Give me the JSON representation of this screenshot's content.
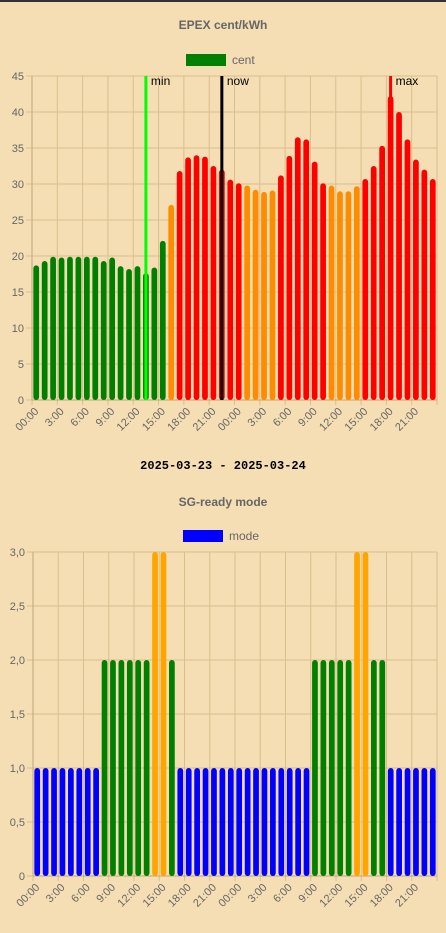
{
  "date_range": "2025-03-23 - 2025-03-24",
  "chart_data": [
    {
      "type": "bar",
      "title": "EPEX cent/kWh",
      "legend": {
        "label": "cent",
        "color": "#008000",
        "position": "top"
      },
      "x_tick_labels": [
        "00:00",
        "3:00",
        "6:00",
        "9:00",
        "12:00",
        "15:00",
        "18:00",
        "21:00",
        "00:00",
        "3:00",
        "6:00",
        "9:00",
        "12:00",
        "15:00",
        "18:00",
        "21:00"
      ],
      "categories": [
        "00:00",
        "01:00",
        "02:00",
        "03:00",
        "04:00",
        "05:00",
        "06:00",
        "07:00",
        "08:00",
        "09:00",
        "10:00",
        "11:00",
        "12:00",
        "13:00",
        "14:00",
        "15:00",
        "16:00",
        "17:00",
        "18:00",
        "19:00",
        "20:00",
        "21:00",
        "22:00",
        "23:00",
        "00:00",
        "01:00",
        "02:00",
        "03:00",
        "04:00",
        "05:00",
        "06:00",
        "07:00",
        "08:00",
        "09:00",
        "10:00",
        "11:00",
        "12:00",
        "13:00",
        "14:00",
        "15:00",
        "16:00",
        "17:00",
        "18:00",
        "19:00",
        "20:00",
        "21:00",
        "22:00",
        "23:00"
      ],
      "values": [
        18.7,
        19.3,
        19.9,
        19.8,
        19.9,
        19.9,
        19.9,
        19.9,
        19.3,
        19.8,
        18.6,
        18.2,
        18.6,
        17.6,
        18.4,
        22.1,
        27.1,
        31.8,
        33.7,
        34.0,
        33.8,
        32.5,
        32.0,
        30.6,
        30.1,
        29.8,
        29.2,
        28.9,
        29.1,
        31.2,
        33.9,
        36.5,
        36.2,
        33.1,
        30.1,
        29.8,
        29.0,
        29.0,
        29.7,
        30.7,
        32.5,
        35.3,
        42.2,
        40.0,
        36.2,
        33.4,
        32.0,
        30.7
      ],
      "bar_colors": [
        "#008000",
        "#008000",
        "#008000",
        "#008000",
        "#008000",
        "#008000",
        "#008000",
        "#008000",
        "#008000",
        "#008000",
        "#008000",
        "#008000",
        "#008000",
        "#008000",
        "#008000",
        "#008000",
        "#ff8c00",
        "#ff0000",
        "#ff0000",
        "#ff0000",
        "#ff0000",
        "#ff0000",
        "#ff0000",
        "#ff0000",
        "#ff0000",
        "#ff8c00",
        "#ff8c00",
        "#ff8c00",
        "#ff8c00",
        "#ff0000",
        "#ff0000",
        "#ff0000",
        "#ff0000",
        "#ff0000",
        "#ff0000",
        "#ff8c00",
        "#ff8c00",
        "#ff8c00",
        "#ff8c00",
        "#ff0000",
        "#ff0000",
        "#ff0000",
        "#ff0000",
        "#ff0000",
        "#ff0000",
        "#ff0000",
        "#ff0000",
        "#ff0000"
      ],
      "ylim": [
        0,
        45
      ],
      "y_ticks": [
        "0",
        "5",
        "10",
        "15",
        "20",
        "25",
        "30",
        "35",
        "40",
        "45"
      ],
      "y_tick_values": [
        0,
        5,
        10,
        15,
        20,
        25,
        30,
        35,
        40,
        45
      ],
      "annotations": [
        {
          "label": "min",
          "index": 13,
          "color": "#00ff00"
        },
        {
          "label": "now",
          "index": 22,
          "color": "#000000"
        },
        {
          "label": "max",
          "index": 42,
          "color": "#ff0000"
        }
      ],
      "grid": true
    },
    {
      "type": "bar",
      "title": "SG-ready mode",
      "legend": {
        "label": "mode",
        "color": "#0000ff",
        "position": "top"
      },
      "x_tick_labels": [
        "00:00",
        "3:00",
        "6:00",
        "9:00",
        "12:00",
        "15:00",
        "18:00",
        "21:00",
        "00:00",
        "3:00",
        "6:00",
        "9:00",
        "12:00",
        "15:00",
        "18:00",
        "21:00"
      ],
      "values": [
        1,
        1,
        1,
        1,
        1,
        1,
        1,
        1,
        2,
        2,
        2,
        2,
        2,
        2,
        3,
        3,
        2,
        1,
        1,
        1,
        1,
        1,
        1,
        1,
        1,
        1,
        1,
        1,
        1,
        1,
        1,
        1,
        1,
        2,
        2,
        2,
        2,
        2,
        3,
        3,
        2,
        2,
        1,
        1,
        1,
        1,
        1,
        1
      ],
      "bar_colors": [
        "#0000ff",
        "#0000ff",
        "#0000ff",
        "#0000ff",
        "#0000ff",
        "#0000ff",
        "#0000ff",
        "#0000ff",
        "#008000",
        "#008000",
        "#008000",
        "#008000",
        "#008000",
        "#008000",
        "#ffa500",
        "#ffa500",
        "#008000",
        "#0000ff",
        "#0000ff",
        "#0000ff",
        "#0000ff",
        "#0000ff",
        "#0000ff",
        "#0000ff",
        "#0000ff",
        "#0000ff",
        "#0000ff",
        "#0000ff",
        "#0000ff",
        "#0000ff",
        "#0000ff",
        "#0000ff",
        "#0000ff",
        "#008000",
        "#008000",
        "#008000",
        "#008000",
        "#008000",
        "#ffa500",
        "#ffa500",
        "#008000",
        "#008000",
        "#0000ff",
        "#0000ff",
        "#0000ff",
        "#0000ff",
        "#0000ff",
        "#0000ff"
      ],
      "ylim": [
        0,
        3
      ],
      "y_ticks": [
        "0",
        "0,5",
        "1,0",
        "1,5",
        "2,0",
        "2,5",
        "3,0"
      ],
      "y_tick_values": [
        0,
        0.5,
        1,
        1.5,
        2,
        2.5,
        3
      ],
      "grid": true
    }
  ]
}
